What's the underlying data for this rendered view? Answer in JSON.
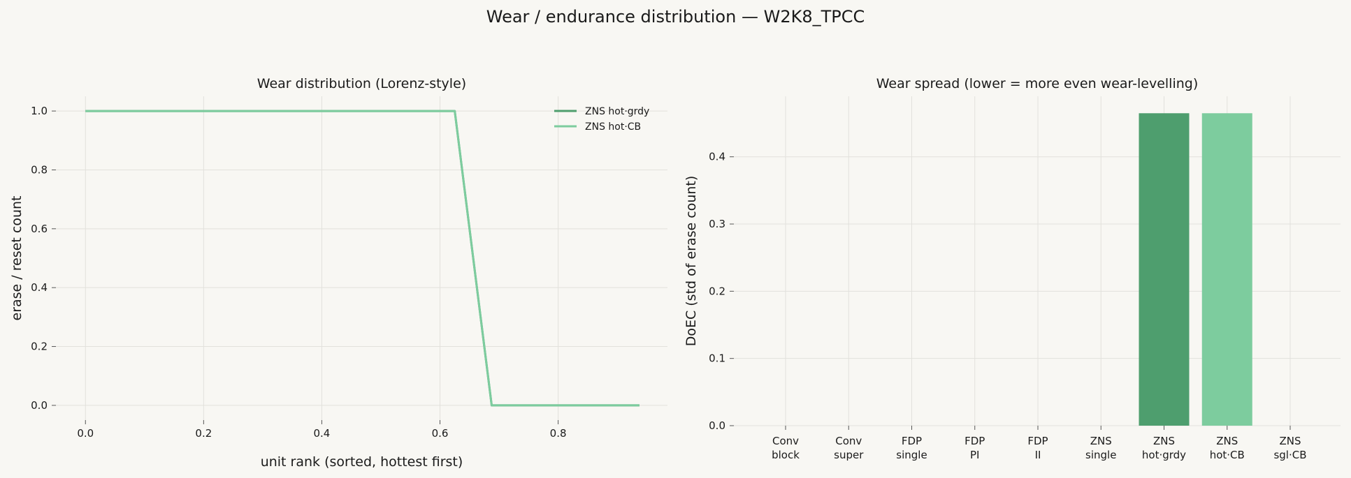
{
  "figure": {
    "suptitle": "Wear / endurance distribution — W2K8_TPCC"
  },
  "chart_data": [
    {
      "type": "line",
      "title": "Wear distribution (Lorenz-style)",
      "xlabel": "unit rank (sorted, hottest first)",
      "ylabel": "erase / reset count",
      "xlim": [
        -0.05,
        0.985
      ],
      "ylim": [
        -0.05,
        1.05
      ],
      "xticks": [
        "0.0",
        "0.2",
        "0.4",
        "0.6",
        "0.8"
      ],
      "yticks": [
        "0.0",
        "0.2",
        "0.4",
        "0.6",
        "0.8",
        "1.0"
      ],
      "grid": true,
      "legend": "top-right",
      "series": [
        {
          "name": "ZNS hot·grdy",
          "color": "#4e9e6e",
          "x": [
            0.0,
            0.625,
            0.6875,
            0.9375
          ],
          "y": [
            1.0,
            1.0,
            0.0,
            0.0
          ]
        },
        {
          "name": "ZNS hot·CB",
          "color": "#7dcc9e",
          "x": [
            0.0,
            0.625,
            0.6875,
            0.9375
          ],
          "y": [
            1.0,
            1.0,
            0.0,
            0.0
          ]
        }
      ]
    },
    {
      "type": "bar",
      "title": "Wear spread (lower = more even wear-levelling)",
      "xlabel": "",
      "ylabel": "DoEC (std of erase count)",
      "ylim": [
        0,
        0.49
      ],
      "yticks": [
        "0.0",
        "0.1",
        "0.2",
        "0.3",
        "0.4"
      ],
      "grid": true,
      "categories": [
        [
          "Conv",
          "block"
        ],
        [
          "Conv",
          "super"
        ],
        [
          "FDP",
          "single"
        ],
        [
          "FDP",
          "PI"
        ],
        [
          "FDP",
          "II"
        ],
        [
          "ZNS",
          "single"
        ],
        [
          "ZNS",
          "hot·grdy"
        ],
        [
          "ZNS",
          "hot·CB"
        ],
        [
          "ZNS",
          "sgl·CB"
        ]
      ],
      "values": [
        0,
        0,
        0,
        0,
        0,
        0,
        0.4648,
        0.4648,
        0
      ],
      "colors": [
        "#4e9e6e",
        "#4e9e6e",
        "#4e9e6e",
        "#4e9e6e",
        "#4e9e6e",
        "#4e9e6e",
        "#4e9e6e",
        "#7dcc9e",
        "#7dcc9e"
      ]
    }
  ]
}
